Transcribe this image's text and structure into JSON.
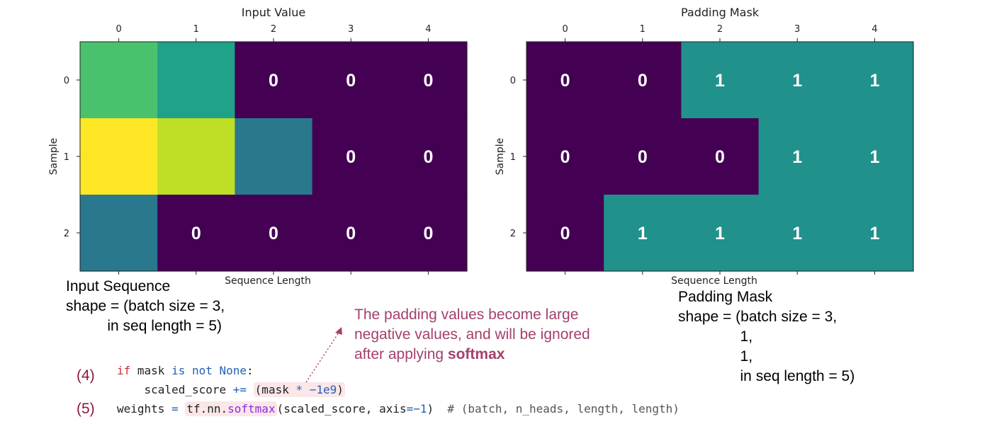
{
  "chart_data": [
    {
      "type": "heatmap",
      "title": "Input Value",
      "xlabel": "Sequence Length",
      "ylabel": "Sample",
      "x_ticks": [
        "0",
        "1",
        "2",
        "3",
        "4"
      ],
      "y_ticks": [
        "0",
        "1",
        "2"
      ],
      "colors": [
        [
          "#4ac16d",
          "#1fa287",
          "#440154",
          "#440154",
          "#440154"
        ],
        [
          "#fde725",
          "#bddf26",
          "#2a788e",
          "#440154",
          "#440154"
        ],
        [
          "#2a788e",
          "#440154",
          "#440154",
          "#440154",
          "#440154"
        ]
      ],
      "cell_labels": [
        [
          "",
          "",
          "0",
          "0",
          "0"
        ],
        [
          "",
          "",
          "",
          "0",
          "0"
        ],
        [
          "",
          "0",
          "0",
          "0",
          "0"
        ]
      ]
    },
    {
      "type": "heatmap",
      "title": "Padding Mask",
      "xlabel": "Sequence Length",
      "ylabel": "Sample",
      "x_ticks": [
        "0",
        "1",
        "2",
        "3",
        "4"
      ],
      "y_ticks": [
        "0",
        "1",
        "2"
      ],
      "values": [
        [
          0,
          0,
          1,
          1,
          1
        ],
        [
          0,
          0,
          0,
          1,
          1
        ],
        [
          0,
          1,
          1,
          1,
          1
        ]
      ],
      "colors": {
        "0": "#440154",
        "1": "#21918c"
      }
    }
  ],
  "captions": {
    "input": "Input Sequence\nshape = (batch size = 3,\n          in seq length = 5)",
    "mask": "Padding Mask\nshape = (batch size = 3,\n               1,\n               1,\n               in seq length = 5)"
  },
  "note": {
    "line1": "The padding values become large",
    "line2": "negative values, and will be ignored",
    "line3_prefix": "after applying ",
    "line3_bold": "softmax"
  },
  "code": {
    "step4": "(4)",
    "step5": "(5)",
    "line1_if": "if",
    "line1_mask": " mask ",
    "line1_is": "is",
    "line1_not": " not ",
    "line1_none": "None",
    "line1_colon": ":",
    "line2_a": "    scaled_score ",
    "line2_op": "+=",
    "line2_hl_a": "(mask ",
    "line2_hl_op": "*",
    "line2_hl_num": " −1e9",
    "line2_hl_b": ")",
    "line3_a": "weights ",
    "line3_eq": "=",
    "line3_hl_a": "tf.nn.",
    "line3_hl_fn": "softmax",
    "line3_b": "(scaled_score, axis",
    "line3_eq2": "=",
    "line3_num": "−1",
    "line3_c": ")  ",
    "line3_comment": "# (batch, n_heads, length, length)"
  }
}
